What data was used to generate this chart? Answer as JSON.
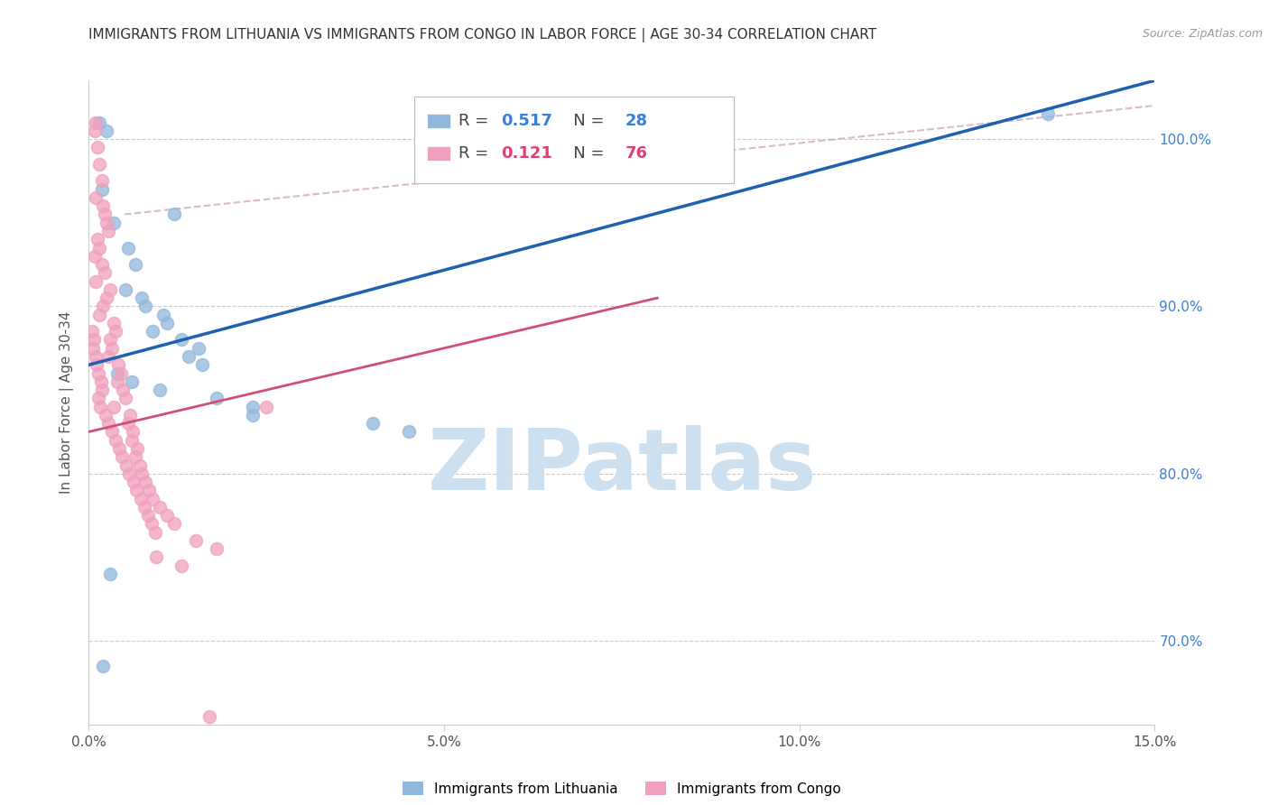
{
  "title": "IMMIGRANTS FROM LITHUANIA VS IMMIGRANTS FROM CONGO IN LABOR FORCE | AGE 30-34 CORRELATION CHART",
  "source": "Source: ZipAtlas.com",
  "ylabel": "In Labor Force | Age 30-34",
  "xlim": [
    0.0,
    15.0
  ],
  "ylim": [
    65.0,
    103.5
  ],
  "xticks": [
    0.0,
    5.0,
    10.0,
    15.0
  ],
  "xticklabels": [
    "0.0%",
    "5.0%",
    "10.0%",
    "15.0%"
  ],
  "right_yticks": [
    70.0,
    80.0,
    90.0,
    100.0
  ],
  "right_yticklabels": [
    "70.0%",
    "80.0%",
    "90.0%",
    "100.0%"
  ],
  "R_blue": "0.517",
  "N_blue": "28",
  "R_pink": "0.121",
  "N_pink": "76",
  "blue_dot_color": "#90b8dc",
  "pink_dot_color": "#f0a0be",
  "blue_line_color": "#2060b0",
  "pink_line_color": "#d05075",
  "dashed_line_color": "#d0b0c0",
  "blue_line_x0": 0.0,
  "blue_line_y0": 86.5,
  "blue_line_x1": 15.0,
  "blue_line_y1": 103.5,
  "pink_line_x0": 0.0,
  "pink_line_y0": 82.5,
  "pink_line_x1": 8.0,
  "pink_line_y1": 90.5,
  "dashed_line_x0": 0.5,
  "dashed_line_y0": 95.5,
  "dashed_line_x1": 15.0,
  "dashed_line_y1": 102.0,
  "watermark_text": "ZIPatlas",
  "watermark_color": "#cce0f0",
  "legend_label_blue": "Immigrants from Lithuania",
  "legend_label_pink": "Immigrants from Congo",
  "blue_x": [
    0.15,
    0.25,
    0.18,
    0.35,
    0.55,
    0.65,
    0.52,
    0.75,
    0.8,
    1.05,
    1.1,
    0.9,
    1.3,
    1.55,
    1.4,
    1.6,
    0.4,
    0.6,
    1.0,
    1.8,
    2.3,
    2.3,
    4.0,
    4.5,
    0.3,
    13.5,
    1.2,
    0.2
  ],
  "blue_y": [
    101.0,
    100.5,
    97.0,
    95.0,
    93.5,
    92.5,
    91.0,
    90.5,
    90.0,
    89.5,
    89.0,
    88.5,
    88.0,
    87.5,
    87.0,
    86.5,
    86.0,
    85.5,
    85.0,
    84.5,
    84.0,
    83.5,
    83.0,
    82.5,
    74.0,
    101.5,
    95.5,
    68.5
  ],
  "pink_x": [
    0.1,
    0.08,
    0.12,
    0.15,
    0.18,
    0.1,
    0.2,
    0.22,
    0.25,
    0.28,
    0.12,
    0.15,
    0.08,
    0.18,
    0.22,
    0.1,
    0.3,
    0.25,
    0.2,
    0.15,
    0.35,
    0.38,
    0.3,
    0.32,
    0.28,
    0.42,
    0.45,
    0.4,
    0.48,
    0.52,
    0.35,
    0.58,
    0.55,
    0.62,
    0.6,
    0.68,
    0.65,
    0.72,
    0.75,
    0.8,
    0.85,
    0.9,
    1.0,
    1.1,
    1.2,
    0.05,
    0.07,
    0.06,
    0.09,
    0.11,
    0.14,
    0.17,
    0.19,
    0.13,
    0.16,
    0.23,
    0.27,
    0.33,
    0.37,
    0.43,
    0.47,
    0.53,
    0.57,
    0.63,
    0.67,
    0.73,
    0.78,
    0.83,
    0.88,
    0.93,
    1.5,
    1.8,
    2.5,
    0.95,
    1.3,
    1.7
  ],
  "pink_y": [
    101.0,
    100.5,
    99.5,
    98.5,
    97.5,
    96.5,
    96.0,
    95.5,
    95.0,
    94.5,
    94.0,
    93.5,
    93.0,
    92.5,
    92.0,
    91.5,
    91.0,
    90.5,
    90.0,
    89.5,
    89.0,
    88.5,
    88.0,
    87.5,
    87.0,
    86.5,
    86.0,
    85.5,
    85.0,
    84.5,
    84.0,
    83.5,
    83.0,
    82.5,
    82.0,
    81.5,
    81.0,
    80.5,
    80.0,
    79.5,
    79.0,
    78.5,
    78.0,
    77.5,
    77.0,
    88.5,
    88.0,
    87.5,
    87.0,
    86.5,
    86.0,
    85.5,
    85.0,
    84.5,
    84.0,
    83.5,
    83.0,
    82.5,
    82.0,
    81.5,
    81.0,
    80.5,
    80.0,
    79.5,
    79.0,
    78.5,
    78.0,
    77.5,
    77.0,
    76.5,
    76.0,
    75.5,
    84.0,
    75.0,
    74.5,
    65.5
  ]
}
